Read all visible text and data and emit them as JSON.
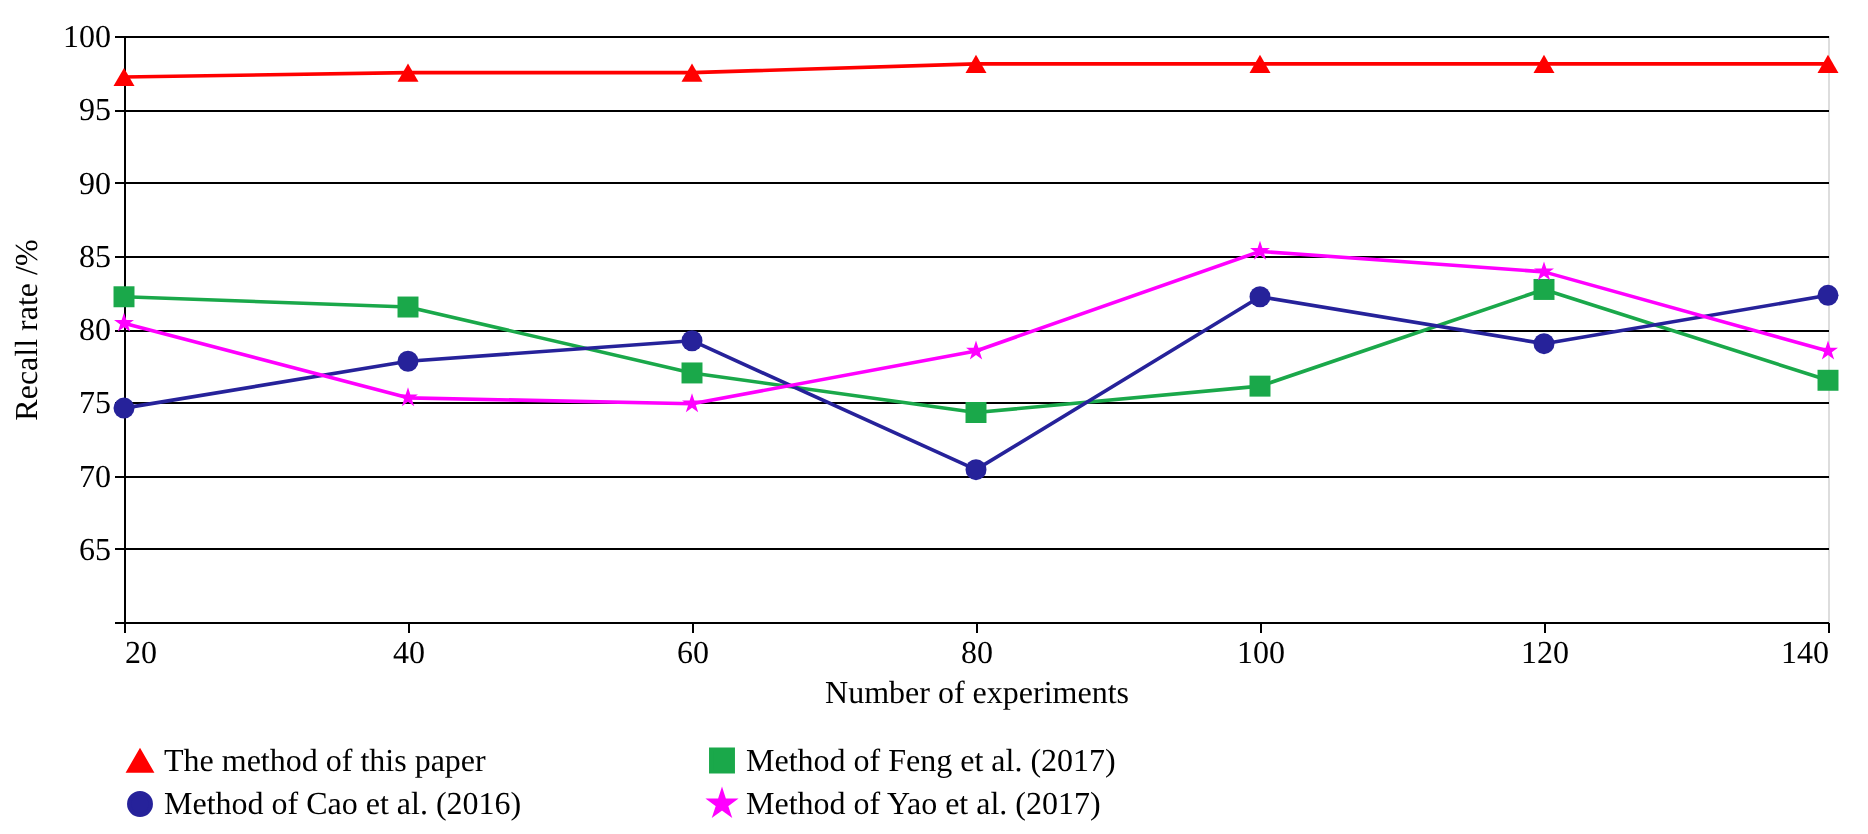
{
  "chart_data": {
    "type": "line",
    "xlabel": "Number of experiments",
    "ylabel": "Recall rate /%",
    "x": [
      20,
      40,
      60,
      80,
      100,
      120,
      140
    ],
    "xlim": [
      20,
      140
    ],
    "xticks": [
      20,
      40,
      60,
      80,
      100,
      120,
      140
    ],
    "ylim": [
      60,
      100
    ],
    "yticks": [
      {
        "value": 60,
        "label": null
      },
      65,
      70,
      75,
      80,
      85,
      90,
      95,
      100
    ],
    "grid": "y",
    "legend": "bottom",
    "line_style": "solid",
    "series": [
      {
        "name": "The method of this paper",
        "color": "#ff0000",
        "marker": "triangle",
        "values": [
          97.2,
          97.5,
          97.5,
          98.1,
          98.1,
          98.1,
          98.1
        ]
      },
      {
        "name": "Method of Feng et al. (2017)",
        "color": "#1aa84a",
        "marker": "square",
        "values": [
          82.2,
          81.5,
          77.0,
          74.3,
          76.1,
          82.7,
          76.5
        ]
      },
      {
        "name": "Method of Cao et al. (2016)",
        "color": "#26229a",
        "marker": "circle",
        "values": [
          74.6,
          77.8,
          79.2,
          70.4,
          82.2,
          79.0,
          82.3
        ]
      },
      {
        "name": "Method of Yao et al. (2017)",
        "color": "#ff00ff",
        "marker": "star",
        "values": [
          80.4,
          75.3,
          74.9,
          78.5,
          85.3,
          83.9,
          78.5
        ]
      }
    ]
  }
}
